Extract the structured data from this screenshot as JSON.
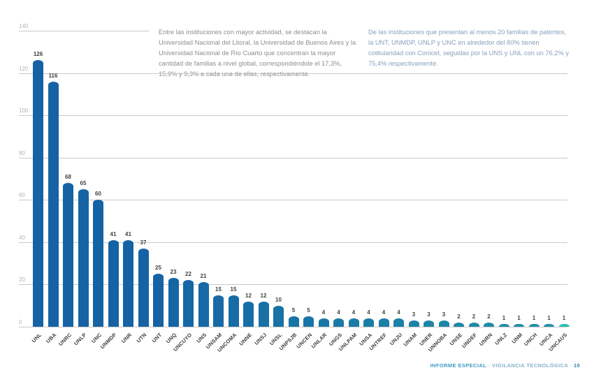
{
  "paragraphs": {
    "left": "Entre las instituciones con mayor actividad, se destacan la Universidad Nacional del Litoral, la Universidad de Buenos Aires y la Universidad Nacional de Río Cuarto que concentran la mayor cantidad de familias a nivel global, correspondiéndole el 17,3%, 15,9% y 9,3% a cada una de ellas, respectivamente.",
    "right": "De las instituciones que presentan al menos 20 familias de patentes, la UNT, UNMDP, UNLP y UNC en alrededor del 80% tienen cotitularidad con Conicet, seguidas por la UNS y UNL con un 76,2% y 75,4% respectivamente."
  },
  "footer": {
    "section": "INFORME ESPECIAL",
    "separator": "-",
    "report": "VIGILANCIA TECNOLÓGICA",
    "page_number": "10"
  },
  "chart_data": {
    "type": "bar",
    "title": "",
    "xlabel": "",
    "ylabel": "",
    "categories": [
      "UNL",
      "UBA",
      "UNRC",
      "UNLP",
      "UNC",
      "UNMDP",
      "UNR",
      "UTN",
      "UNT",
      "UNQ",
      "UNCUYO",
      "UNS",
      "UNSAM",
      "UNCOMA",
      "UNNE",
      "UNSJ",
      "UNSL",
      "UNPSJB",
      "UNCEN",
      "UNLAR",
      "UNGS",
      "UNLPAM",
      "UNSA",
      "UNTREF",
      "UNJU",
      "UNAM",
      "UNER",
      "UNNOBA",
      "UNSE",
      "UNDEF",
      "UNRN",
      "UNLZ",
      "UNM",
      "UNCH",
      "UNCA",
      "UNCAUS"
    ],
    "values": [
      126,
      116,
      68,
      65,
      60,
      41,
      41,
      37,
      25,
      23,
      22,
      21,
      15,
      15,
      12,
      12,
      10,
      5,
      5,
      4,
      4,
      4,
      4,
      4,
      4,
      3,
      3,
      3,
      2,
      2,
      2,
      1,
      1,
      1,
      1,
      1
    ],
    "ylim": [
      0,
      140
    ],
    "yticks": [
      0,
      20,
      40,
      60,
      80,
      100,
      120,
      140
    ],
    "grid": true,
    "legend": "none",
    "value_labels": true,
    "colors": {
      "bar_start": "#1563a5",
      "bar_end": "#1f93a9",
      "bar_last": "#2cc0b1",
      "gridline": "#c9c9c9"
    }
  }
}
